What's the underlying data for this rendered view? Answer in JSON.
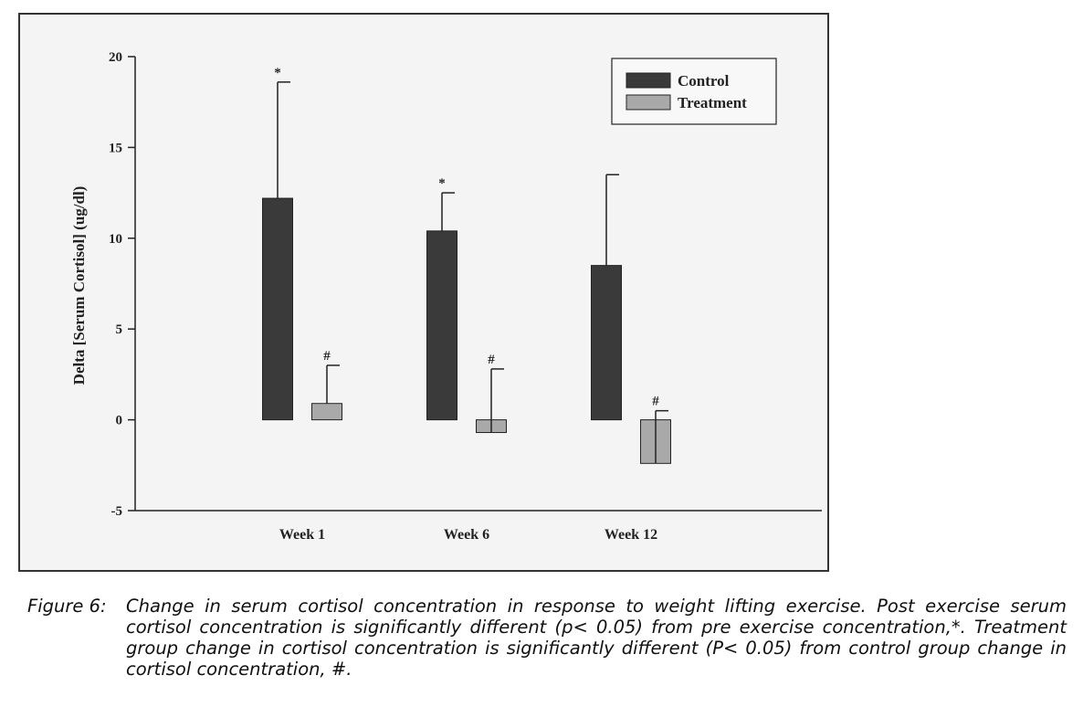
{
  "chart_data": {
    "type": "bar",
    "categories": [
      "Week 1",
      "Week 6",
      "Week 12"
    ],
    "series": [
      {
        "name": "Control",
        "color": "#3a3a3a",
        "values": [
          12.2,
          10.4,
          8.5
        ],
        "error": [
          6.4,
          2.1,
          5.0
        ],
        "markers": [
          "*",
          "*",
          ""
        ]
      },
      {
        "name": "Treatment",
        "color": "#a9a9a9",
        "values": [
          0.9,
          -0.7,
          -2.4
        ],
        "error": [
          2.1,
          3.5,
          2.9
        ],
        "markers": [
          "#",
          "#",
          "#"
        ]
      }
    ],
    "ylabel": "Delta [Serum Cortisol] (ug/dl)",
    "ylim": [
      -5,
      20
    ],
    "yticks": [
      20,
      15,
      10,
      5,
      0,
      -5
    ],
    "ytick_labels": [
      "20",
      "15",
      "10",
      "5",
      "0",
      "-5"
    ],
    "legend_position": "top-right",
    "grid": false
  },
  "caption": {
    "label": "Figure 6:",
    "text": "Change in serum cortisol concentration in response to weight lifting exercise. Post exercise serum cortisol concentration is significantly different (p< 0.05) from pre exercise concentration,*. Treatment group change in cortisol concentration is significantly different (P< 0.05) from control group change in cortisol concentration, #."
  }
}
